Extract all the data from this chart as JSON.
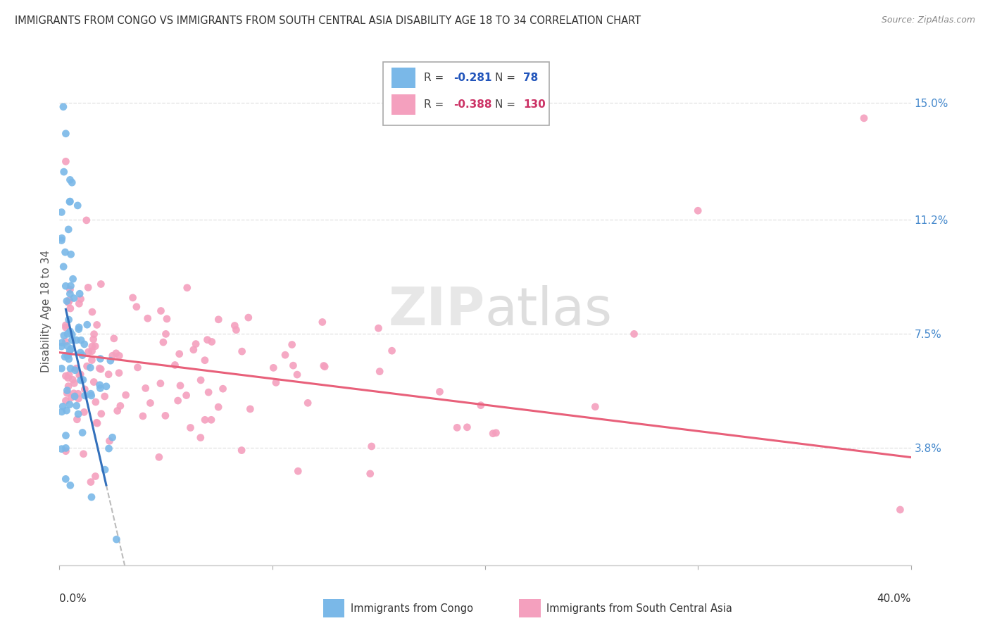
{
  "title": "IMMIGRANTS FROM CONGO VS IMMIGRANTS FROM SOUTH CENTRAL ASIA DISABILITY AGE 18 TO 34 CORRELATION CHART",
  "source": "Source: ZipAtlas.com",
  "ylabel_label": "Disability Age 18 to 34",
  "ytick_labels": [
    "3.8%",
    "7.5%",
    "11.2%",
    "15.0%"
  ],
  "ytick_values": [
    0.038,
    0.075,
    0.112,
    0.15
  ],
  "xlim": [
    0.0,
    0.4
  ],
  "ylim": [
    0.0,
    0.165
  ],
  "legend_r1": "-0.281",
  "legend_n1": "78",
  "legend_r2": "-0.388",
  "legend_n2": "130",
  "color_congo": "#7ab8e8",
  "color_sca": "#f4a0be",
  "color_line_congo": "#3370bb",
  "color_line_sca": "#e8607a",
  "color_grid": "#e0e0e0",
  "watermark": "ZIPatlas"
}
